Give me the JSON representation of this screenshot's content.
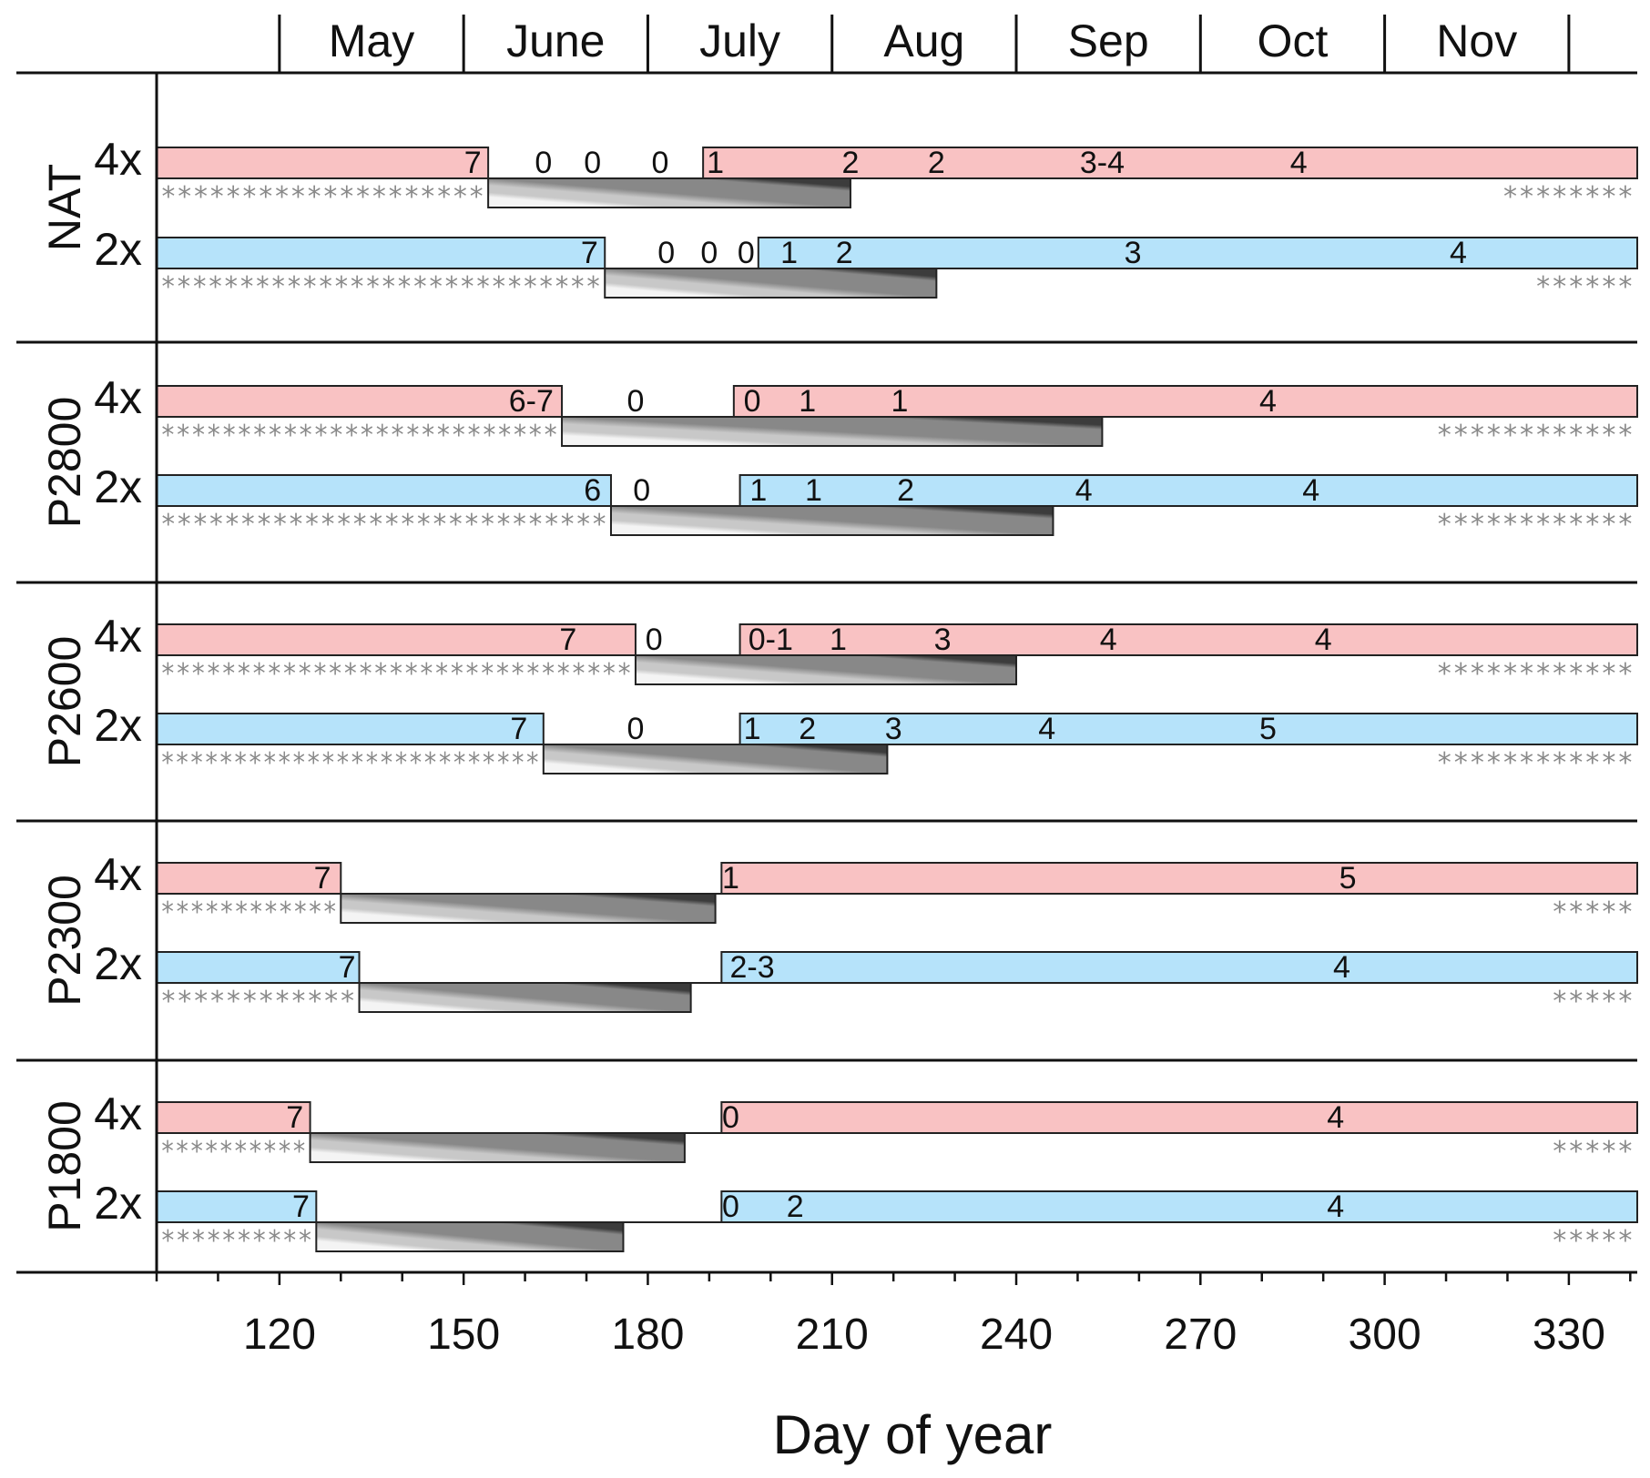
{
  "chart_data": {
    "type": "gantt",
    "xlabel": "Day of year",
    "xlim": [
      100,
      341
    ],
    "x_ticks": [
      120,
      150,
      180,
      210,
      240,
      270,
      300,
      330
    ],
    "months": [
      {
        "name": "May",
        "start": 120,
        "end": 150
      },
      {
        "name": "June",
        "start": 150,
        "end": 180
      },
      {
        "name": "July",
        "start": 180,
        "end": 210
      },
      {
        "name": "Aug",
        "start": 210,
        "end": 240
      },
      {
        "name": "Sep",
        "start": 240,
        "end": 270
      },
      {
        "name": "Oct",
        "start": 270,
        "end": 300
      },
      {
        "name": "Nov",
        "start": 300,
        "end": 330
      }
    ],
    "colors": {
      "4x": "#f9c2c3",
      "2x": "#b6e3fa",
      "gradient": [
        "#f4f4f4",
        "#c8c8c8",
        "#888888",
        "#3c3c3c"
      ],
      "stars": "#8a8a8a"
    },
    "groups": [
      {
        "name": "NAT",
        "rows": [
          {
            "ploidy": "4x",
            "pre_end": 154,
            "post_start": 189,
            "dev_end": 213,
            "stage_labels": [
              {
                "day": 151.5,
                "text": "7"
              },
              {
                "day": 163,
                "text": "0"
              },
              {
                "day": 171,
                "text": "0"
              },
              {
                "day": 182,
                "text": "0"
              },
              {
                "day": 191,
                "text": "1"
              },
              {
                "day": 213,
                "text": "2"
              },
              {
                "day": 227,
                "text": "2"
              },
              {
                "day": 254,
                "text": "3-4"
              },
              {
                "day": 286,
                "text": "4"
              }
            ],
            "stars_left": "********************",
            "stars_right": "********"
          },
          {
            "ploidy": "2x",
            "pre_end": 173,
            "post_start": 198,
            "dev_end": 227,
            "stage_labels": [
              {
                "day": 170.5,
                "text": "7"
              },
              {
                "day": 183,
                "text": "0"
              },
              {
                "day": 190,
                "text": "0"
              },
              {
                "day": 196,
                "text": "0"
              },
              {
                "day": 203,
                "text": "1"
              },
              {
                "day": 212,
                "text": "2"
              },
              {
                "day": 259,
                "text": "3"
              },
              {
                "day": 312,
                "text": "4"
              }
            ],
            "stars_left": "****************************",
            "stars_right": "******"
          }
        ]
      },
      {
        "name": "P2800",
        "rows": [
          {
            "ploidy": "4x",
            "pre_end": 166,
            "post_start": 194,
            "dev_end": 254,
            "stage_labels": [
              {
                "day": 161,
                "text": "6-7"
              },
              {
                "day": 178,
                "text": "0"
              },
              {
                "day": 197,
                "text": "0"
              },
              {
                "day": 206,
                "text": "1"
              },
              {
                "day": 221,
                "text": "1"
              },
              {
                "day": 281,
                "text": "4"
              }
            ],
            "stars_left": "**************************",
            "stars_right": "************"
          },
          {
            "ploidy": "2x",
            "pre_end": 174,
            "post_start": 195,
            "dev_end": 246,
            "stage_labels": [
              {
                "day": 171,
                "text": "6"
              },
              {
                "day": 179,
                "text": "0"
              },
              {
                "day": 198,
                "text": "1"
              },
              {
                "day": 207,
                "text": "1"
              },
              {
                "day": 222,
                "text": "2"
              },
              {
                "day": 251,
                "text": "4"
              },
              {
                "day": 288,
                "text": "4"
              }
            ],
            "stars_left": "****************************",
            "stars_right": "************"
          }
        ]
      },
      {
        "name": "P2600",
        "rows": [
          {
            "ploidy": "4x",
            "pre_end": 178,
            "post_start": 195,
            "dev_end": 240,
            "stage_labels": [
              {
                "day": 167,
                "text": "7"
              },
              {
                "day": 181,
                "text": "0"
              },
              {
                "day": 200,
                "text": "0-1"
              },
              {
                "day": 211,
                "text": "1"
              },
              {
                "day": 228,
                "text": "3"
              },
              {
                "day": 255,
                "text": "4"
              },
              {
                "day": 290,
                "text": "4"
              }
            ],
            "stars_left": "*******************************",
            "stars_right": "************"
          },
          {
            "ploidy": "2x",
            "pre_end": 163,
            "post_start": 195,
            "dev_end": 219,
            "stage_labels": [
              {
                "day": 159,
                "text": "7"
              },
              {
                "day": 178,
                "text": "0"
              },
              {
                "day": 197,
                "text": "1"
              },
              {
                "day": 206,
                "text": "2"
              },
              {
                "day": 220,
                "text": "3"
              },
              {
                "day": 245,
                "text": "4"
              },
              {
                "day": 281,
                "text": "5"
              }
            ],
            "stars_left": "**************************",
            "stars_right": "************"
          }
        ]
      },
      {
        "name": "P2300",
        "rows": [
          {
            "ploidy": "4x",
            "pre_end": 130,
            "post_start": 192,
            "dev_end": 191,
            "stage_labels": [
              {
                "day": 127,
                "text": "7"
              },
              {
                "day": 193.5,
                "text": "1"
              },
              {
                "day": 294,
                "text": "5"
              }
            ],
            "stars_left": "************",
            "stars_right": "*****"
          },
          {
            "ploidy": "2x",
            "pre_end": 133,
            "post_start": 192,
            "dev_end": 187,
            "stage_labels": [
              {
                "day": 131,
                "text": "7"
              },
              {
                "day": 197,
                "text": "2-3"
              },
              {
                "day": 293,
                "text": "4"
              }
            ],
            "stars_left": "************",
            "stars_right": "*****"
          }
        ]
      },
      {
        "name": "P1800",
        "rows": [
          {
            "ploidy": "4x",
            "pre_end": 125,
            "post_start": 192,
            "dev_end": 186,
            "stage_labels": [
              {
                "day": 122.5,
                "text": "7"
              },
              {
                "day": 193.5,
                "text": "0"
              },
              {
                "day": 292,
                "text": "4"
              }
            ],
            "stars_left": "**********",
            "stars_right": "*****"
          },
          {
            "ploidy": "2x",
            "pre_end": 126,
            "post_start": 192,
            "dev_end": 176,
            "stage_labels": [
              {
                "day": 123.5,
                "text": "7"
              },
              {
                "day": 193.5,
                "text": "0"
              },
              {
                "day": 204,
                "text": "2"
              },
              {
                "day": 292,
                "text": "4"
              }
            ],
            "stars_left": "**********",
            "stars_right": "*****"
          }
        ]
      }
    ]
  }
}
